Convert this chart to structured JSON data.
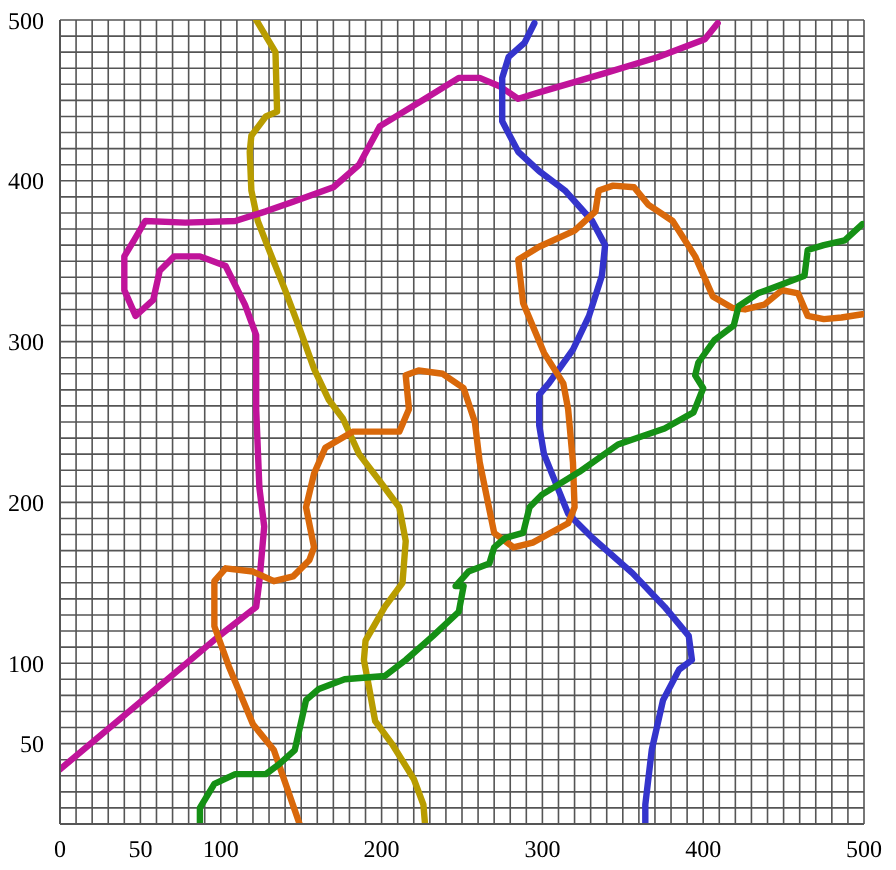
{
  "chart_data": {
    "type": "line",
    "xlim": [
      0,
      500
    ],
    "ylim": [
      0,
      500
    ],
    "xticks": [
      0,
      {
        "value": 10,
        "label": null
      },
      {
        "value": 20,
        "label": null
      },
      {
        "value": 30,
        "label": null
      },
      {
        "value": 40,
        "label": null
      },
      50,
      {
        "value": 60,
        "label": null
      },
      {
        "value": 70,
        "label": null
      },
      {
        "value": 80,
        "label": null
      },
      {
        "value": 90,
        "label": null
      },
      100,
      {
        "value": 110,
        "label": null
      },
      {
        "value": 120,
        "label": null
      },
      {
        "value": 130,
        "label": null
      },
      {
        "value": 140,
        "label": null
      },
      {
        "value": 150,
        "label": null
      },
      {
        "value": 160,
        "label": null
      },
      {
        "value": 170,
        "label": null
      },
      {
        "value": 180,
        "label": null
      },
      {
        "value": 190,
        "label": null
      },
      200,
      {
        "value": 210,
        "label": null
      },
      {
        "value": 220,
        "label": null
      },
      {
        "value": 230,
        "label": null
      },
      {
        "value": 240,
        "label": null
      },
      {
        "value": 250,
        "label": null
      },
      {
        "value": 260,
        "label": null
      },
      {
        "value": 270,
        "label": null
      },
      {
        "value": 280,
        "label": null
      },
      {
        "value": 290,
        "label": null
      },
      300,
      {
        "value": 310,
        "label": null
      },
      {
        "value": 320,
        "label": null
      },
      {
        "value": 330,
        "label": null
      },
      {
        "value": 340,
        "label": null
      },
      {
        "value": 350,
        "label": null
      },
      {
        "value": 360,
        "label": null
      },
      {
        "value": 370,
        "label": null
      },
      {
        "value": 380,
        "label": null
      },
      {
        "value": 390,
        "label": null
      },
      400,
      {
        "value": 410,
        "label": null
      },
      {
        "value": 420,
        "label": null
      },
      {
        "value": 430,
        "label": null
      },
      {
        "value": 440,
        "label": null
      },
      {
        "value": 450,
        "label": null
      },
      {
        "value": 460,
        "label": null
      },
      {
        "value": 470,
        "label": null
      },
      {
        "value": 480,
        "label": null
      },
      {
        "value": 490,
        "label": null
      },
      500
    ],
    "yticks": [
      {
        "value": 0,
        "label": null
      },
      {
        "value": 10,
        "label": null
      },
      {
        "value": 20,
        "label": null
      },
      {
        "value": 30,
        "label": null
      },
      {
        "value": 40,
        "label": null
      },
      50,
      {
        "value": 60,
        "label": null
      },
      {
        "value": 70,
        "label": null
      },
      {
        "value": 80,
        "label": null
      },
      {
        "value": 90,
        "label": null
      },
      100,
      {
        "value": 110,
        "label": null
      },
      {
        "value": 120,
        "label": null
      },
      {
        "value": 130,
        "label": null
      },
      {
        "value": 140,
        "label": null
      },
      {
        "value": 150,
        "label": null
      },
      {
        "value": 160,
        "label": null
      },
      {
        "value": 170,
        "label": null
      },
      {
        "value": 180,
        "label": null
      },
      {
        "value": 190,
        "label": null
      },
      200,
      {
        "value": 210,
        "label": null
      },
      {
        "value": 220,
        "label": null
      },
      {
        "value": 230,
        "label": null
      },
      {
        "value": 240,
        "label": null
      },
      {
        "value": 250,
        "label": null
      },
      {
        "value": 260,
        "label": null
      },
      {
        "value": 270,
        "label": null
      },
      {
        "value": 280,
        "label": null
      },
      {
        "value": 290,
        "label": null
      },
      300,
      {
        "value": 310,
        "label": null
      },
      {
        "value": 320,
        "label": null
      },
      {
        "value": 330,
        "label": null
      },
      {
        "value": 340,
        "label": null
      },
      {
        "value": 350,
        "label": null
      },
      {
        "value": 360,
        "label": null
      },
      {
        "value": 370,
        "label": null
      },
      {
        "value": 380,
        "label": null
      },
      {
        "value": 390,
        "label": null
      },
      400,
      {
        "value": 410,
        "label": null
      },
      {
        "value": 420,
        "label": null
      },
      {
        "value": 430,
        "label": null
      },
      {
        "value": 440,
        "label": null
      },
      {
        "value": 450,
        "label": null
      },
      {
        "value": 460,
        "label": null
      },
      {
        "value": 470,
        "label": null
      },
      {
        "value": 480,
        "label": null
      },
      {
        "value": 490,
        "label": null
      },
      500
    ],
    "grid": true,
    "marker": "none",
    "line_style": "solid",
    "series": [
      {
        "color": "#b89c00",
        "x": [
          122,
          134,
          135,
          128,
          119,
          118,
          119,
          123,
          130,
          140,
          149,
          158,
          167,
          176,
          186,
          199,
          211,
          215,
          213,
          202,
          190,
          189,
          192,
          196,
          207,
          220,
          226,
          227
        ],
        "values": [
          500,
          480,
          443,
          440,
          428,
          418,
          394,
          375,
          357,
          332,
          308,
          283,
          264,
          252,
          230,
          213,
          197,
          176,
          150,
          135,
          114,
          102,
          86,
          64,
          49,
          28,
          12,
          0
        ]
      },
      {
        "color": "#c0139a",
        "x": [
          0,
          99,
          122,
          124,
          127,
          124,
          122,
          122,
          115,
          103,
          87,
          71,
          62,
          58,
          47,
          40,
          40,
          46,
          53,
          78,
          109,
          128,
          145,
          170,
          186,
          199,
          227,
          248,
          261,
          273,
          285,
          298,
          339,
          372,
          401,
          409
        ],
        "values": [
          34,
          117,
          135,
          151,
          185,
          209,
          258,
          304,
          323,
          347,
          353,
          353,
          344,
          326,
          316,
          332,
          353,
          363,
          375,
          374,
          375,
          381,
          387,
          396,
          410,
          434,
          451,
          464,
          464,
          459,
          451,
          455,
          467,
          477,
          488,
          498
        ]
      },
      {
        "color": "#3434cc",
        "x": [
          295,
          289,
          279,
          275,
          275,
          285,
          298,
          314,
          331,
          339,
          337,
          329,
          319,
          304,
          298,
          298,
          301,
          316,
          331,
          356,
          376,
          391,
          393,
          385,
          375,
          368,
          364,
          364
        ],
        "values": [
          498,
          486,
          477,
          464,
          437,
          418,
          406,
          394,
          375,
          360,
          341,
          316,
          295,
          274,
          267,
          248,
          230,
          193,
          178,
          156,
          135,
          117,
          102,
          96,
          77,
          46,
          12,
          0
        ]
      },
      {
        "color": "#d9680a",
        "x": [
          149,
          133,
          120,
          105,
          96,
          96,
          103,
          120,
          133,
          145,
          155,
          158,
          153,
          158,
          165,
          182,
          211,
          217,
          215,
          223,
          238,
          251,
          258,
          261,
          270,
          282,
          294,
          316,
          320,
          319,
          316,
          313,
          301,
          288,
          285,
          298,
          320,
          333,
          335,
          344,
          357,
          366,
          381,
          395,
          406,
          418,
          426,
          438,
          449,
          459,
          465,
          475,
          486,
          499
        ],
        "values": [
          0,
          46,
          62,
          98,
          123,
          151,
          159,
          157,
          151,
          154,
          164,
          172,
          197,
          218,
          234,
          244,
          244,
          258,
          279,
          282,
          280,
          271,
          250,
          225,
          181,
          172,
          175,
          187,
          197,
          225,
          258,
          274,
          293,
          324,
          351,
          359,
          369,
          381,
          394,
          397,
          396,
          385,
          375,
          353,
          328,
          321,
          320,
          323,
          332,
          330,
          316,
          314,
          315,
          317
        ]
      },
      {
        "color": "#159015",
        "x": [
          87,
          87,
          96,
          109,
          128,
          136,
          146,
          153,
          161,
          177,
          202,
          215,
          232,
          248,
          251,
          246,
          254,
          267,
          270,
          277,
          288,
          292,
          300,
          323,
          347,
          376,
          394,
          400,
          395,
          397,
          407,
          419,
          422,
          434,
          450,
          463,
          465,
          475,
          488,
          499
        ],
        "values": [
          0,
          10,
          25,
          31,
          31,
          37,
          46,
          77,
          84,
          90,
          92,
          102,
          117,
          132,
          148,
          148,
          157,
          162,
          172,
          178,
          181,
          197,
          205,
          219,
          236,
          246,
          256,
          271,
          279,
          287,
          301,
          310,
          322,
          330,
          336,
          341,
          357,
          360,
          363,
          373
        ]
      }
    ]
  }
}
